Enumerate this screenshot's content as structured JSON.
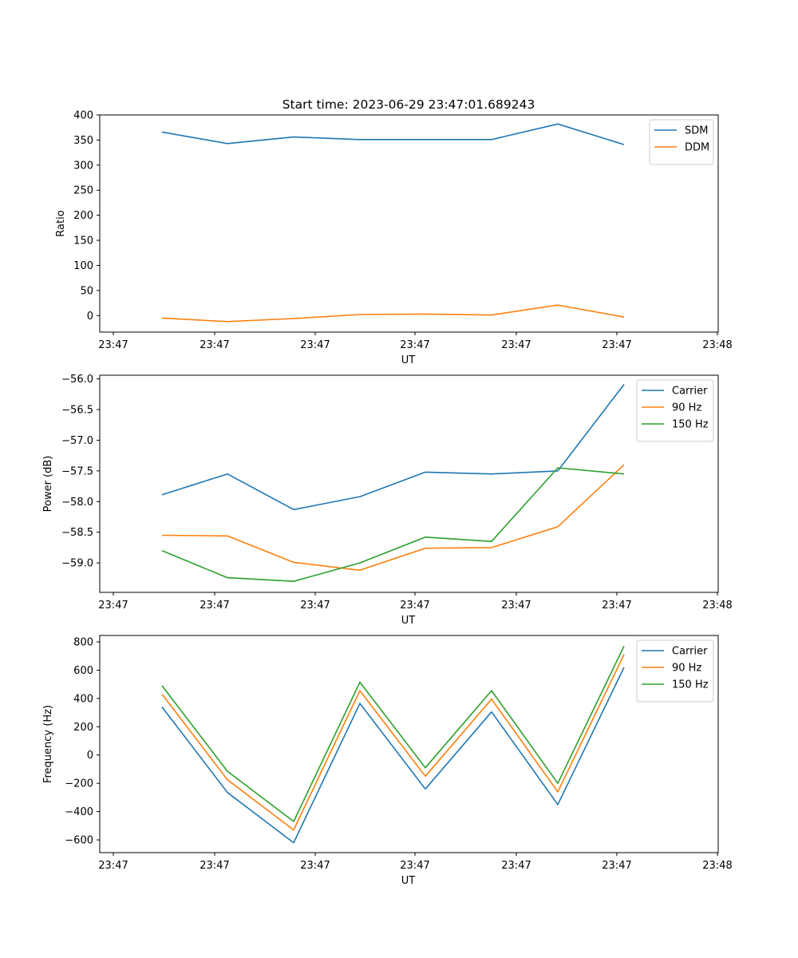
{
  "figure_title": "Start time: 2023-06-29 23:47:01.689243",
  "colors": {
    "blue": "#1f77b4",
    "orange": "#ff7f0e",
    "green": "#2ca02c"
  },
  "chart_data": [
    {
      "type": "line",
      "title": "Start time: 2023-06-29 23:47:01.689243",
      "xlabel": "UT",
      "ylabel": "Ratio",
      "x_tick_labels": [
        "23:47",
        "23:47",
        "23:47",
        "23:47",
        "23:47",
        "23:47",
        "23:48"
      ],
      "x_points": [
        1,
        2,
        3,
        4,
        5,
        6,
        7,
        8
      ],
      "xlim": [
        0.3,
        9.05
      ],
      "ylim": [
        -33,
        400
      ],
      "y_ticks": [
        0,
        50,
        100,
        150,
        200,
        250,
        300,
        350,
        400
      ],
      "legend_position": "upper right",
      "series": [
        {
          "name": "SDM",
          "color": "#1f77b4",
          "values": [
            366,
            343,
            356,
            351,
            351,
            351,
            382,
            341
          ]
        },
        {
          "name": "DDM",
          "color": "#ff7f0e",
          "values": [
            -5,
            -12,
            -6,
            2,
            3,
            1,
            21,
            -3
          ]
        }
      ]
    },
    {
      "type": "line",
      "title": "",
      "xlabel": "UT",
      "ylabel": "Power (dB)",
      "x_tick_labels": [
        "23:47",
        "23:47",
        "23:47",
        "23:47",
        "23:47",
        "23:47",
        "23:48"
      ],
      "x_points": [
        1,
        2,
        3,
        4,
        5,
        6,
        7,
        8
      ],
      "xlim": [
        0.3,
        9.05
      ],
      "ylim": [
        -59.48,
        -55.94
      ],
      "y_ticks": [
        -59.0,
        -58.5,
        -58.0,
        -57.5,
        -57.0,
        -56.5,
        -56.0
      ],
      "y_tick_labels": [
        "−59.0",
        "−58.5",
        "−58.0",
        "−57.5",
        "−57.0",
        "−56.5",
        "−56.0"
      ],
      "legend_position": "upper right",
      "series": [
        {
          "name": "Carrier",
          "color": "#1f77b4",
          "values": [
            -57.89,
            -57.55,
            -58.13,
            -57.92,
            -57.52,
            -57.55,
            -57.5,
            -56.09
          ]
        },
        {
          "name": "90 Hz",
          "color": "#ff7f0e",
          "values": [
            -58.55,
            -58.56,
            -58.99,
            -59.12,
            -58.76,
            -58.75,
            -58.41,
            -57.4
          ]
        },
        {
          "name": "150 Hz",
          "color": "#2ca02c",
          "values": [
            -58.8,
            -59.24,
            -59.3,
            -59.0,
            -58.58,
            -58.65,
            -57.45,
            -57.55
          ]
        }
      ]
    },
    {
      "type": "line",
      "title": "",
      "xlabel": "UT",
      "ylabel": "Frequency (Hz)",
      "x_tick_labels": [
        "23:47",
        "23:47",
        "23:47",
        "23:47",
        "23:47",
        "23:47",
        "23:48"
      ],
      "x_points": [
        1,
        2,
        3,
        4,
        5,
        6,
        7,
        8
      ],
      "xlim": [
        0.3,
        9.05
      ],
      "ylim": [
        -690,
        845
      ],
      "y_ticks": [
        -600,
        -400,
        -200,
        0,
        200,
        400,
        600,
        800
      ],
      "y_tick_labels": [
        "−600",
        "−400",
        "−200",
        "0",
        "200",
        "400",
        "600",
        "800"
      ],
      "legend_position": "upper right",
      "series": [
        {
          "name": "Carrier",
          "color": "#1f77b4",
          "values": [
            340,
            -265,
            -620,
            365,
            -240,
            305,
            -350,
            620
          ]
        },
        {
          "name": "90 Hz",
          "color": "#ff7f0e",
          "values": [
            430,
            -175,
            -530,
            455,
            -150,
            395,
            -260,
            710
          ]
        },
        {
          "name": "150 Hz",
          "color": "#2ca02c",
          "values": [
            490,
            -115,
            -470,
            515,
            -90,
            455,
            -200,
            770
          ]
        }
      ]
    }
  ]
}
